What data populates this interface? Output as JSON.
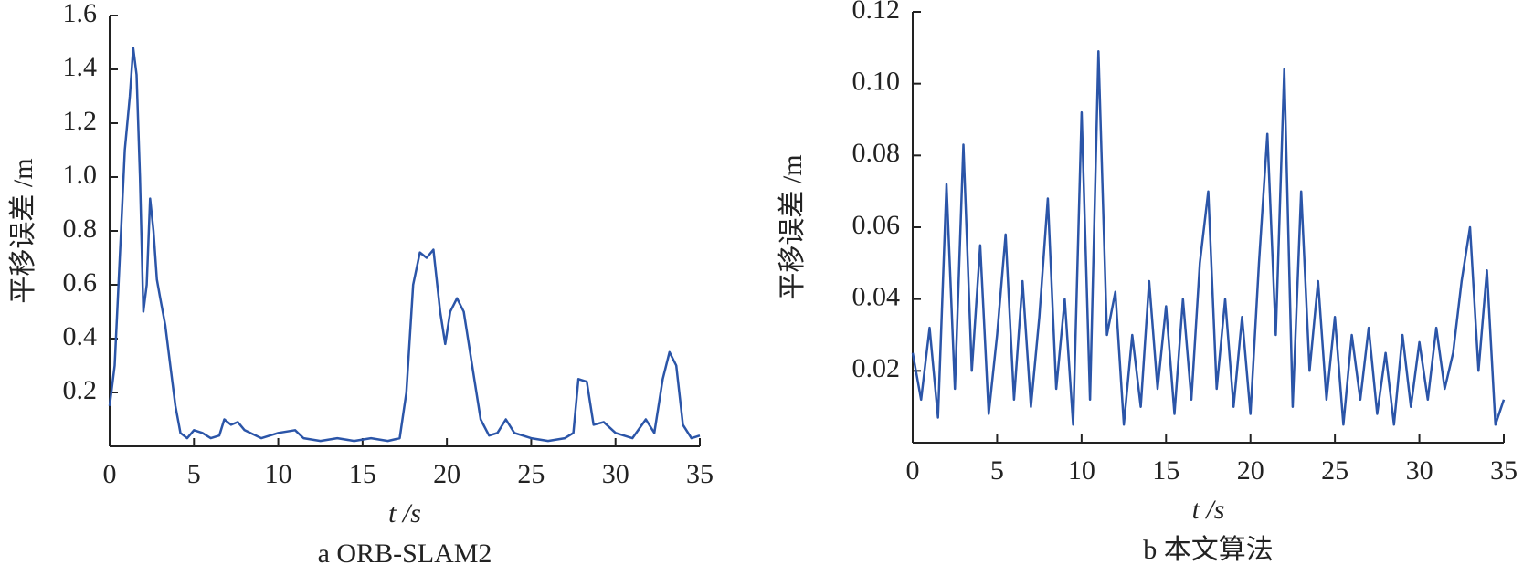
{
  "chart_data": [
    {
      "type": "line",
      "caption": "a ORB-SLAM2",
      "xlabel": "t /s",
      "ylabel": "平移误差 /m",
      "color": "#2b55a8",
      "x": [
        0,
        0.3,
        0.6,
        0.9,
        1.2,
        1.4,
        1.6,
        1.8,
        2.0,
        2.2,
        2.4,
        2.6,
        2.8,
        3.0,
        3.3,
        3.6,
        3.9,
        4.2,
        4.6,
        5.0,
        5.5,
        6.0,
        6.5,
        6.8,
        7.2,
        7.6,
        8.0,
        9.0,
        10.0,
        11.0,
        11.5,
        12.5,
        13.5,
        14.5,
        15.5,
        16.5,
        17.2,
        17.6,
        18.0,
        18.4,
        18.8,
        19.2,
        19.6,
        19.9,
        20.2,
        20.6,
        21.0,
        21.5,
        22.0,
        22.5,
        23.0,
        23.5,
        24.0,
        25.0,
        26.0,
        27.0,
        27.5,
        27.8,
        28.3,
        28.7,
        29.3,
        30.0,
        31.0,
        31.8,
        32.3,
        32.8,
        33.2,
        33.6,
        34.0,
        34.5,
        35.0
      ],
      "values": [
        0.15,
        0.3,
        0.7,
        1.1,
        1.3,
        1.48,
        1.38,
        1.0,
        0.5,
        0.6,
        0.92,
        0.8,
        0.62,
        0.55,
        0.45,
        0.3,
        0.15,
        0.05,
        0.03,
        0.06,
        0.05,
        0.03,
        0.04,
        0.1,
        0.08,
        0.09,
        0.06,
        0.03,
        0.05,
        0.06,
        0.03,
        0.02,
        0.03,
        0.02,
        0.03,
        0.02,
        0.03,
        0.2,
        0.6,
        0.72,
        0.7,
        0.73,
        0.5,
        0.38,
        0.5,
        0.55,
        0.5,
        0.3,
        0.1,
        0.04,
        0.05,
        0.1,
        0.05,
        0.03,
        0.02,
        0.03,
        0.05,
        0.25,
        0.24,
        0.08,
        0.09,
        0.05,
        0.03,
        0.1,
        0.05,
        0.25,
        0.35,
        0.3,
        0.08,
        0.03,
        0.04
      ],
      "xlim": [
        0,
        35
      ],
      "xticks": [
        0,
        5,
        10,
        15,
        20,
        25,
        30,
        35
      ],
      "ylim": [
        0,
        1.6
      ],
      "yticks": [
        0.2,
        0.4,
        0.6,
        0.8,
        {
          "value": 1,
          "label": "1.0"
        },
        1.2,
        1.4,
        1.6
      ]
    },
    {
      "type": "line",
      "caption": "b 本文算法",
      "xlabel": "t /s",
      "ylabel": "平移误差 /m",
      "color": "#2b55a8",
      "x": [
        0,
        0.5,
        1,
        1.5,
        2,
        2.5,
        3,
        3.5,
        4,
        4.5,
        5,
        5.5,
        6,
        6.5,
        7,
        7.5,
        8,
        8.5,
        9,
        9.5,
        10,
        10.5,
        11,
        11.5,
        12,
        12.5,
        13,
        13.5,
        14,
        14.5,
        15,
        15.5,
        16,
        16.5,
        17,
        17.5,
        18,
        18.5,
        19,
        19.5,
        20,
        20.5,
        21,
        21.5,
        22,
        22.5,
        23,
        23.5,
        24,
        24.5,
        25,
        25.5,
        26,
        26.5,
        27,
        27.5,
        28,
        28.5,
        29,
        29.5,
        30,
        30.5,
        31,
        31.5,
        32,
        32.5,
        33,
        33.5,
        34,
        34.5,
        35
      ],
      "values": [
        0.025,
        0.012,
        0.032,
        0.007,
        0.072,
        0.015,
        0.083,
        0.02,
        0.055,
        0.008,
        0.03,
        0.058,
        0.012,
        0.045,
        0.01,
        0.035,
        0.068,
        0.015,
        0.04,
        0.005,
        0.092,
        0.012,
        0.109,
        0.03,
        0.042,
        0.005,
        0.03,
        0.01,
        0.045,
        0.015,
        0.038,
        0.008,
        0.04,
        0.012,
        0.05,
        0.07,
        0.015,
        0.04,
        0.01,
        0.035,
        0.008,
        0.05,
        0.086,
        0.03,
        0.104,
        0.01,
        0.07,
        0.02,
        0.045,
        0.012,
        0.035,
        0.005,
        0.03,
        0.012,
        0.032,
        0.008,
        0.025,
        0.005,
        0.03,
        0.01,
        0.028,
        0.012,
        0.032,
        0.015,
        0.025,
        0.045,
        0.06,
        0.02,
        0.048,
        0.005,
        0.012
      ],
      "xlim": [
        0,
        35
      ],
      "xticks": [
        0,
        5,
        10,
        15,
        20,
        25,
        30,
        35
      ],
      "ylim": [
        0,
        0.12
      ],
      "yticks": [
        0.02,
        0.04,
        0.06,
        0.08,
        {
          "value": 0.1,
          "label": "0.10"
        },
        0.12
      ]
    }
  ]
}
